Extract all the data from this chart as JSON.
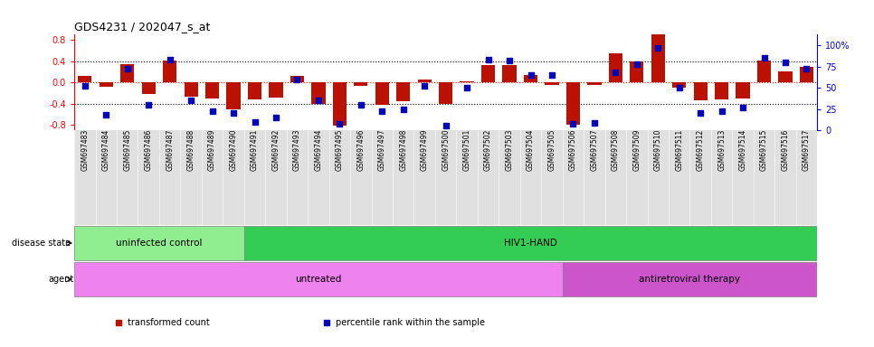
{
  "title": "GDS4231 / 202047_s_at",
  "samples": [
    "GSM697483",
    "GSM697484",
    "GSM697485",
    "GSM697486",
    "GSM697487",
    "GSM697488",
    "GSM697489",
    "GSM697490",
    "GSM697491",
    "GSM697492",
    "GSM697493",
    "GSM697494",
    "GSM697495",
    "GSM697496",
    "GSM697497",
    "GSM697498",
    "GSM697499",
    "GSM697500",
    "GSM697501",
    "GSM697502",
    "GSM697503",
    "GSM697504",
    "GSM697505",
    "GSM697506",
    "GSM697507",
    "GSM697508",
    "GSM697509",
    "GSM697510",
    "GSM697511",
    "GSM697512",
    "GSM697513",
    "GSM697514",
    "GSM697515",
    "GSM697516",
    "GSM697517"
  ],
  "bar_values": [
    0.13,
    -0.08,
    0.35,
    -0.22,
    0.42,
    -0.27,
    -0.3,
    -0.5,
    -0.32,
    -0.28,
    0.12,
    -0.41,
    -0.82,
    -0.07,
    -0.42,
    -0.35,
    0.05,
    -0.4,
    0.02,
    0.32,
    0.33,
    0.14,
    -0.04,
    -0.8,
    -0.05,
    0.55,
    0.4,
    0.93,
    -0.1,
    -0.33,
    -0.32,
    -0.3,
    0.42,
    0.2,
    0.3
  ],
  "percentile_values": [
    52,
    18,
    72,
    30,
    83,
    35,
    22,
    20,
    10,
    15,
    60,
    35,
    7,
    30,
    22,
    25,
    52,
    5,
    50,
    83,
    82,
    65,
    65,
    7,
    8,
    68,
    78,
    97,
    50,
    20,
    22,
    27,
    85,
    80,
    72
  ],
  "bar_color": "#BB1100",
  "dot_color": "#0000BB",
  "ylim_left": [
    -0.9,
    0.9
  ],
  "yticks_left": [
    -0.8,
    -0.4,
    0.0,
    0.4,
    0.8
  ],
  "yticks_right": [
    0,
    25,
    50,
    75,
    100
  ],
  "ytick_labels_right": [
    "0",
    "25",
    "50",
    "75",
    "100%"
  ],
  "disease_state_groups": [
    {
      "label": "uninfected control",
      "start": 0,
      "end": 8,
      "color": "#90EE90"
    },
    {
      "label": "HIV1-HAND",
      "start": 8,
      "end": 35,
      "color": "#33CC55"
    }
  ],
  "agent_groups": [
    {
      "label": "untreated",
      "start": 0,
      "end": 23,
      "color": "#EE82EE"
    },
    {
      "label": "antiretroviral therapy",
      "start": 23,
      "end": 35,
      "color": "#CC55CC"
    }
  ],
  "disease_state_label": "disease state",
  "agent_label": "agent",
  "legend_items": [
    {
      "label": "transformed count",
      "color": "#BB1100"
    },
    {
      "label": "percentile rank within the sample",
      "color": "#0000BB"
    }
  ],
  "tick_bg_color": "#E0E0E0",
  "background_color": "#ffffff"
}
